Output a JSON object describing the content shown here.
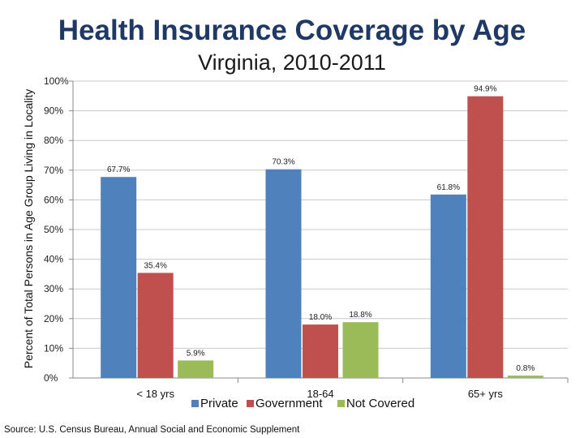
{
  "title": "Health Insurance Coverage by Age",
  "subtitle": "Virginia, 2010-2011",
  "source": "Source: U.S. Census Bureau, Annual Social and Economic Supplement",
  "colors": {
    "Private": "#4f81bd",
    "Government": "#c0504d",
    "Not Covered": "#9bbb59",
    "title": "#1f3864"
  },
  "chart_data": {
    "type": "bar",
    "title": "Health Insurance Coverage by Age",
    "subtitle": "Virginia, 2010-2011",
    "ylabel": "Percent of Total Persons in Age Group Living in Locality",
    "xlabel": "",
    "categories": [
      "< 18 yrs",
      "18-64",
      "65+ yrs"
    ],
    "series": [
      {
        "name": "Private",
        "values": [
          67.7,
          70.3,
          61.8
        ],
        "labels": [
          "67.7%",
          "70.3%",
          "61.8%"
        ]
      },
      {
        "name": "Government",
        "values": [
          35.4,
          18.0,
          94.9
        ],
        "labels": [
          "35.4%",
          "18.0%",
          "94.9%"
        ]
      },
      {
        "name": "Not Covered",
        "values": [
          5.9,
          18.8,
          0.8
        ],
        "labels": [
          "5.9%",
          "18.8%",
          "0.8%"
        ]
      }
    ],
    "ylim": [
      0,
      100
    ],
    "yticks": [
      "0%",
      "10%",
      "20%",
      "30%",
      "40%",
      "50%",
      "60%",
      "70%",
      "80%",
      "90%",
      "100%"
    ],
    "grid": true,
    "legend": "bottom"
  }
}
